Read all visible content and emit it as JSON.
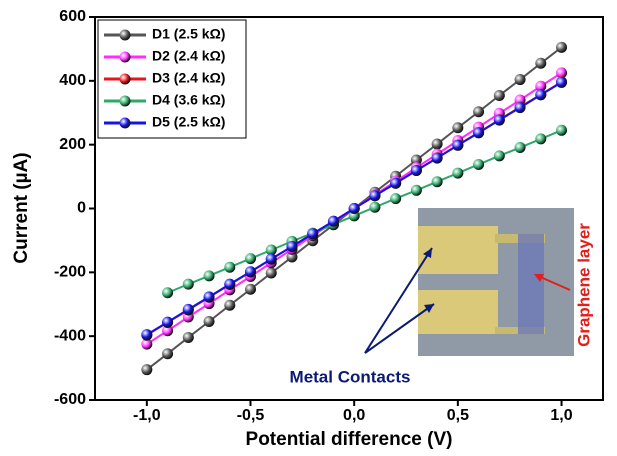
{
  "chart_data": {
    "type": "line",
    "x_label": "Potential difference (V)",
    "y_label": "Current (µA)",
    "annotations": [
      "Metal Contacts",
      "Graphene layer"
    ],
    "x": [
      -1.0,
      -0.9,
      -0.8,
      -0.7,
      -0.6,
      -0.5,
      -0.4,
      -0.3,
      -0.2,
      -0.1,
      0.0,
      0.1,
      0.2,
      0.3,
      0.4,
      0.5,
      0.6,
      0.7,
      0.8,
      0.9,
      1.0
    ],
    "series": [
      {
        "name": "D1 (2.5 kΩ)",
        "color": "#555555",
        "values": [
          -505,
          -455,
          -404,
          -354,
          -303,
          -253,
          -202,
          -152,
          -101,
          -51,
          0,
          51,
          101,
          152,
          202,
          253,
          303,
          354,
          404,
          455,
          505
        ]
      },
      {
        "name": "D2 (2.4 kΩ)",
        "color": "#ff2bff",
        "values": [
          -425,
          -383,
          -340,
          -298,
          -255,
          -213,
          -170,
          -128,
          -85,
          -43,
          0,
          43,
          85,
          128,
          170,
          213,
          255,
          298,
          340,
          383,
          425
        ]
      },
      {
        "name": "D3 (2.4 kΩ)",
        "color": "#e8141c",
        "values": [
          -397,
          -357,
          -318,
          -278,
          -238,
          -199,
          -159,
          -119,
          -79,
          -40,
          0,
          40,
          79,
          119,
          159,
          199,
          238,
          278,
          318,
          357,
          397
        ]
      },
      {
        "name": "D4 (3.6 kΩ)",
        "color": "#2ea86a",
        "values": [
          null,
          -264,
          -237,
          -211,
          -184,
          -157,
          -130,
          -103,
          -77,
          -50,
          -23,
          4,
          31,
          57,
          84,
          111,
          138,
          165,
          191,
          218,
          245
        ]
      },
      {
        "name": "D5 (2.5 kΩ)",
        "color": "#1414e6",
        "values": [
          -395,
          -356,
          -316,
          -277,
          -237,
          -198,
          -158,
          -119,
          -79,
          -40,
          0,
          40,
          79,
          119,
          158,
          198,
          237,
          277,
          316,
          356,
          395
        ]
      }
    ],
    "xlim": [
      -1.25,
      1.2
    ],
    "ylim": [
      -600,
      600
    ],
    "xticks": [
      {
        "value": -1.0,
        "label": "-1,0"
      },
      {
        "value": -0.5,
        "label": "-0,5"
      },
      {
        "value": 0.0,
        "label": "0,0"
      },
      {
        "value": 0.5,
        "label": "0,5"
      },
      {
        "value": 1.0,
        "label": "1,0"
      }
    ],
    "yticks": [
      -600,
      -400,
      -200,
      0,
      200,
      400,
      600
    ],
    "legend": "upper left"
  }
}
